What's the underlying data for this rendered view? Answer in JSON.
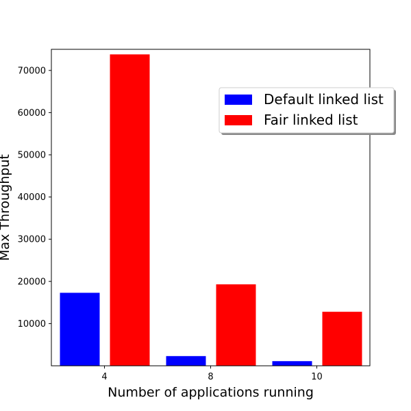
{
  "chart_data": {
    "type": "bar",
    "title": "",
    "xlabel": "Number of applications running",
    "ylabel": "Max Throughput",
    "categories": [
      "4",
      "8",
      "10"
    ],
    "series": [
      {
        "name": "Default linked list",
        "color": "#0000ff",
        "values": [
          17300,
          2300,
          1100
        ]
      },
      {
        "name": "Fair linked list",
        "color": "#ff0000",
        "values": [
          73800,
          19300,
          12800
        ]
      }
    ],
    "ylim": [
      0,
      75000
    ],
    "yticks": [
      10000,
      20000,
      30000,
      40000,
      50000,
      60000,
      70000
    ],
    "grid": false,
    "legend_position": "upper-right"
  }
}
